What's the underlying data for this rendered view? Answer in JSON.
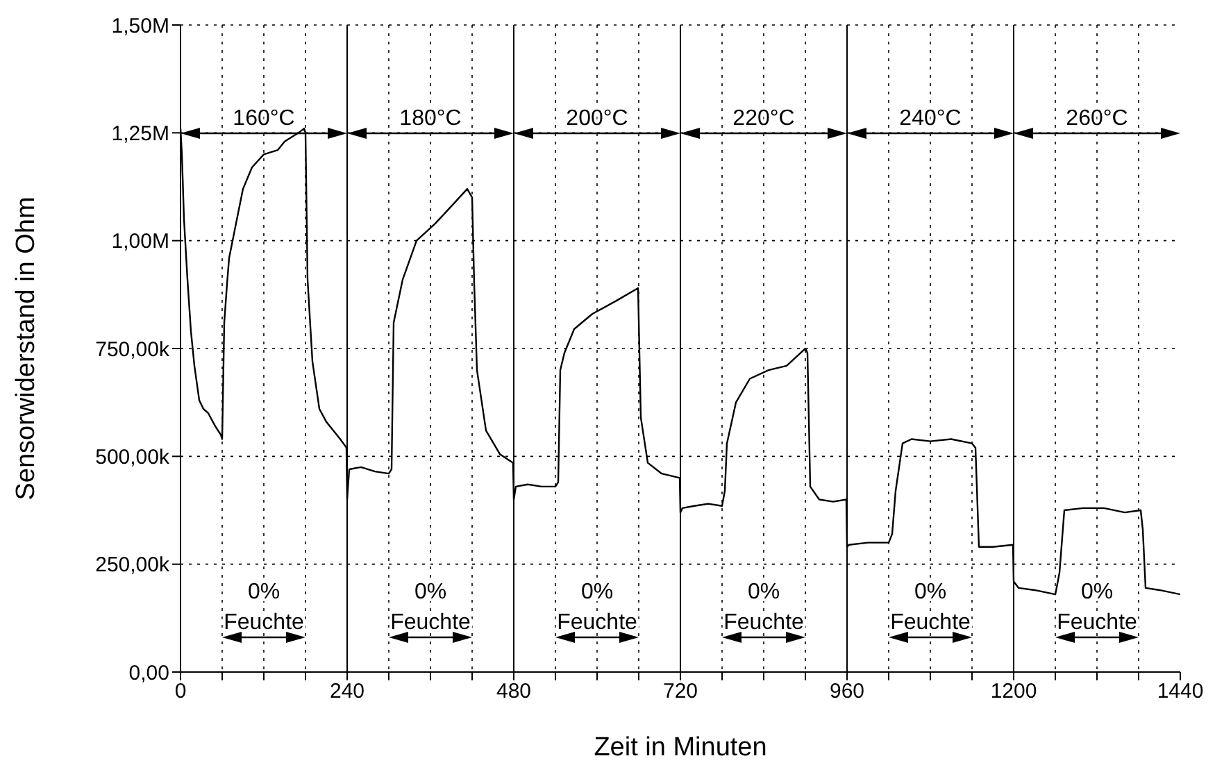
{
  "chart_data": {
    "type": "line",
    "xlabel": "Zeit in Minuten",
    "ylabel": "Sensorwiderstand in Ohm",
    "x": [
      0,
      2,
      5,
      10,
      15,
      20,
      27,
      33,
      40,
      50,
      58,
      60,
      63,
      67,
      70,
      75,
      80,
      90,
      103,
      120,
      140,
      150,
      160,
      170,
      178,
      180,
      183,
      190,
      200,
      210,
      220,
      230,
      239,
      240,
      243,
      260,
      280,
      300,
      304,
      307,
      320,
      340,
      367,
      393,
      413,
      420,
      423,
      427,
      440,
      460,
      479,
      480,
      483,
      500,
      520,
      540,
      544,
      547,
      553,
      567,
      593,
      627,
      659,
      663,
      673,
      693,
      719,
      720,
      723,
      740,
      760,
      780,
      784,
      787,
      800,
      820,
      847,
      873,
      900,
      903,
      907,
      920,
      940,
      959,
      960,
      963,
      990,
      1020,
      1025,
      1030,
      1040,
      1053,
      1080,
      1110,
      1140,
      1145,
      1150,
      1170,
      1199,
      1200,
      1207,
      1230,
      1260,
      1266,
      1273,
      1300,
      1330,
      1360,
      1383,
      1386,
      1390,
      1410,
      1440
    ],
    "series": [
      {
        "color": "#000000",
        "values": [
          1260000,
          1200000,
          1050000,
          910000,
          790000,
          710000,
          630000,
          610000,
          600000,
          570000,
          550000,
          540000,
          810000,
          900000,
          960000,
          1000000,
          1040000,
          1120000,
          1170000,
          1200000,
          1210000,
          1230000,
          1240000,
          1250000,
          1260000,
          1250000,
          910000,
          720000,
          610000,
          580000,
          560000,
          540000,
          520000,
          400000,
          470000,
          475000,
          465000,
          460000,
          470000,
          810000,
          910000,
          1000000,
          1040000,
          1085000,
          1120000,
          1100000,
          900000,
          700000,
          560000,
          505000,
          485000,
          400000,
          430000,
          435000,
          430000,
          430000,
          440000,
          700000,
          740000,
          795000,
          830000,
          860000,
          890000,
          590000,
          485000,
          460000,
          450000,
          370000,
          380000,
          385000,
          390000,
          385000,
          420000,
          530000,
          625000,
          680000,
          700000,
          710000,
          750000,
          740000,
          430000,
          400000,
          395000,
          400000,
          290000,
          295000,
          300000,
          300000,
          320000,
          420000,
          530000,
          540000,
          535000,
          540000,
          530000,
          520000,
          290000,
          290000,
          295000,
          210000,
          195000,
          190000,
          180000,
          230000,
          375000,
          380000,
          380000,
          370000,
          375000,
          330000,
          195000,
          190000,
          180000
        ]
      }
    ],
    "xlim": [
      0,
      1440
    ],
    "xticks": [
      0,
      {
        "value": 60,
        "label": null
      },
      {
        "value": 120,
        "label": null
      },
      {
        "value": 180,
        "label": null
      },
      240,
      {
        "value": 300,
        "label": null
      },
      {
        "value": 360,
        "label": null
      },
      {
        "value": 420,
        "label": null
      },
      480,
      {
        "value": 540,
        "label": null
      },
      {
        "value": 600,
        "label": null
      },
      {
        "value": 660,
        "label": null
      },
      720,
      {
        "value": 780,
        "label": null
      },
      {
        "value": 840,
        "label": null
      },
      {
        "value": 900,
        "label": null
      },
      960,
      {
        "value": 1020,
        "label": null
      },
      {
        "value": 1080,
        "label": null
      },
      {
        "value": 1140,
        "label": null
      },
      1200,
      {
        "value": 1260,
        "label": null
      },
      {
        "value": 1320,
        "label": null
      },
      {
        "value": 1380,
        "label": null
      },
      1440
    ],
    "ylim": [
      0,
      1500000
    ],
    "yticks": [
      {
        "value": 0,
        "label": "0,00"
      },
      {
        "value": 250000,
        "label": "250,00k"
      },
      {
        "value": 500000,
        "label": "500,00k"
      },
      {
        "value": 750000,
        "label": "750,00k"
      },
      {
        "value": 1000000,
        "label": "1,00M"
      },
      {
        "value": 1250000,
        "label": "1,25M"
      },
      {
        "value": 1500000,
        "label": "1,50M"
      }
    ],
    "grid": true,
    "line_style": "solid",
    "marker": "none",
    "annotations": [
      "160°C",
      "180°C",
      "200°C",
      "220°C",
      "240°C",
      "260°C",
      "0%\nFeuchte",
      "0%\nFeuchte",
      "0%\nFeuchte",
      "0%\nFeuchte",
      "0%\nFeuchte",
      "0%\nFeuchte"
    ]
  }
}
